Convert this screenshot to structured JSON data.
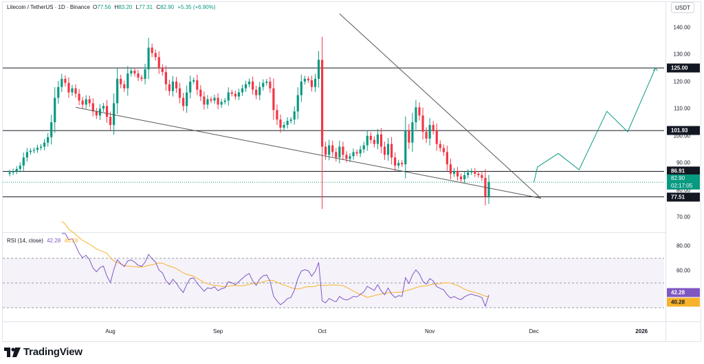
{
  "legend": {
    "symbol": "Litecoin / TetherUS · 1D · Binance",
    "open_label": "O",
    "open": "77.56",
    "high_label": "H",
    "high": "83.20",
    "low_label": "L",
    "low": "77.31",
    "close_label": "C",
    "close": "82.90",
    "change": "+5.35 (+6.90%)"
  },
  "currency": "USDT",
  "rsi_legend": {
    "label": "RSI (14, close)",
    "rsi": "42.28",
    "ma": "40.28"
  },
  "brand": {
    "name": "TradingView"
  },
  "colors": {
    "up": "#089981",
    "down": "#f23645",
    "rsi": "#7e57c2",
    "rsi_ma": "#f7b32b",
    "projection": "#089981"
  },
  "chart_data": [
    {
      "type": "candlestick",
      "series_name": "Litecoin / TetherUS",
      "ylim": [
        65,
        145
      ],
      "y_ticks": [
        "140.00",
        "130.00",
        "120.00",
        "110.00",
        "100.00",
        "90.00",
        "80.00",
        "70.00"
      ],
      "x_labels": [
        "Aug",
        "Sep",
        "Oct",
        "Nov",
        "Dec",
        "2026"
      ],
      "x_label_dates": [
        "2025-08-01",
        "2025-09-01",
        "2025-10-01",
        "2025-11-01",
        "2025-12-01",
        "2026-01-01"
      ],
      "start_date": "2025-07-01",
      "horizontal_levels": [
        125.0,
        101.93,
        86.91,
        77.51
      ],
      "level_labels": [
        "125.00",
        "101.93",
        "86.91",
        "77.51"
      ],
      "last_price": {
        "value": 82.9,
        "label": "82.90",
        "countdown": "02:17:05"
      },
      "close_prices": [
        86.5,
        87.0,
        87.8,
        89.0,
        92.0,
        94.0,
        94.5,
        94.8,
        95.6,
        96.0,
        97.5,
        99.5,
        105.0,
        114.0,
        118.0,
        121.0,
        119.5,
        116.0,
        117.5,
        115.5,
        113.0,
        111.5,
        113.5,
        112.0,
        109.0,
        107.5,
        110.0,
        111.0,
        107.0,
        104.0,
        112.0,
        121.0,
        119.0,
        117.5,
        123.0,
        124.0,
        123.0,
        121.5,
        121.0,
        124.5,
        132.5,
        130.5,
        129.0,
        125.0,
        123.5,
        119.0,
        116.5,
        120.0,
        117.5,
        114.0,
        111.0,
        116.0,
        120.0,
        120.5,
        117.0,
        114.5,
        111.5,
        113.5,
        113.0,
        114.0,
        111.5,
        112.5,
        113.0,
        116.0,
        115.5,
        114.5,
        116.0,
        117.5,
        119.0,
        120.0,
        117.0,
        115.0,
        118.0,
        119.5,
        120.0,
        117.5,
        109.5,
        106.0,
        103.0,
        104.0,
        105.5,
        106.0,
        109.0,
        115.0,
        120.0,
        121.0,
        120.5,
        118.0,
        121.0,
        128.0,
        96.0,
        93.0,
        96.5,
        94.0,
        92.0,
        96.0,
        93.0,
        91.5,
        92.5,
        94.0,
        93.5,
        95.0,
        96.5,
        100.0,
        98.5,
        97.0,
        100.5,
        96.0,
        93.0,
        97.0,
        92.0,
        89.0,
        90.0,
        89.5,
        102.0,
        97.5,
        105.0,
        110.5,
        107.5,
        101.5,
        99.0,
        104.0,
        102.0,
        97.0,
        95.5,
        94.0,
        89.5,
        86.0,
        87.0,
        85.0,
        84.0,
        85.5,
        86.5,
        87.0,
        86.0,
        85.5,
        84.5,
        77.56,
        82.9
      ],
      "open_prices": [
        86.0,
        86.5,
        87.0,
        87.8,
        89.0,
        92.0,
        94.0,
        94.5,
        94.8,
        95.6,
        96.0,
        97.5,
        99.5,
        105.0,
        114.0,
        118.0,
        121.0,
        119.5,
        116.0,
        117.5,
        115.5,
        113.0,
        111.5,
        113.5,
        112.0,
        109.0,
        107.5,
        110.0,
        111.0,
        107.0,
        104.0,
        112.0,
        121.0,
        119.0,
        117.5,
        123.0,
        124.0,
        123.0,
        121.5,
        121.0,
        124.5,
        132.5,
        130.5,
        129.0,
        125.0,
        123.5,
        119.0,
        116.5,
        120.0,
        117.5,
        114.0,
        111.0,
        116.0,
        120.0,
        120.5,
        117.0,
        114.5,
        111.5,
        113.5,
        113.0,
        114.0,
        111.5,
        112.5,
        113.0,
        116.0,
        115.5,
        114.5,
        116.0,
        117.5,
        119.0,
        120.0,
        117.0,
        115.0,
        118.0,
        119.5,
        120.0,
        117.5,
        109.5,
        106.0,
        103.0,
        104.0,
        105.5,
        106.0,
        109.0,
        115.0,
        120.0,
        121.0,
        120.5,
        118.0,
        121.0,
        128.0,
        96.0,
        93.0,
        96.5,
        94.0,
        92.0,
        96.0,
        93.0,
        91.5,
        92.5,
        94.0,
        93.5,
        95.0,
        96.5,
        100.0,
        98.5,
        97.0,
        100.5,
        96.0,
        93.0,
        97.0,
        92.0,
        89.0,
        90.0,
        89.5,
        102.0,
        97.5,
        105.0,
        110.5,
        107.5,
        101.5,
        99.0,
        104.0,
        102.0,
        97.0,
        95.5,
        94.0,
        89.5,
        86.0,
        87.0,
        85.0,
        84.0,
        85.5,
        86.5,
        87.0,
        86.0,
        85.5,
        84.5,
        77.56
      ],
      "spike": {
        "high": 136.5,
        "low": 73.0
      },
      "trendlines": [
        {
          "from": [
            "2025-07-22",
            110.5
          ],
          "to": [
            "2025-12-03",
            77.0
          ],
          "label": ""
        },
        {
          "from": [
            "2025-10-06",
            145.0
          ],
          "to": [
            "2025-12-03",
            77.0
          ],
          "label": ""
        }
      ],
      "projection_path": [
        [
          "2025-12-01",
          82.9
        ],
        [
          "2025-12-02",
          88.5
        ],
        [
          "2025-12-08",
          93.5
        ],
        [
          "2025-12-14",
          87.5
        ],
        [
          "2025-12-22",
          109.0
        ],
        [
          "2025-12-28",
          101.5
        ],
        [
          "2026-01-05",
          125.0
        ]
      ]
    },
    {
      "type": "line",
      "title": "RSI (14, close)",
      "ylim": [
        20,
        90
      ],
      "y_ticks": [
        "80.00",
        "60.00"
      ],
      "bands": [
        70,
        50,
        30
      ],
      "series": [
        {
          "name": "RSI",
          "color": "#7e57c2",
          "last": 42.28
        },
        {
          "name": "MA",
          "color": "#f7b32b",
          "last": 40.28
        }
      ]
    }
  ]
}
